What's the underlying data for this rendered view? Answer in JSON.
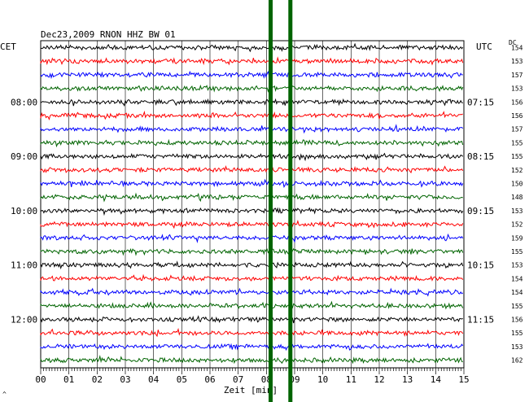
{
  "chart_data": {
    "type": "line",
    "title": "Dec23,2009   RNON HHZ BW 01",
    "left_header": "CET",
    "right_header": "UTC",
    "dc_header": "DC",
    "xlabel": "Zeit [min]",
    "xlim": [
      0,
      15
    ],
    "x_ticks": [
      "00",
      "01",
      "02",
      "03",
      "04",
      "05",
      "06",
      "07",
      "08",
      "09",
      "10",
      "11",
      "12",
      "13",
      "14",
      "15"
    ],
    "trace_count": 24,
    "trace_colors": [
      "#000000",
      "#ff0000",
      "#0000ff",
      "#006400"
    ],
    "left_time_labels": [
      {
        "trace": 4,
        "label": "08:00"
      },
      {
        "trace": 8,
        "label": "09:00"
      },
      {
        "trace": 12,
        "label": "10:00"
      },
      {
        "trace": 16,
        "label": "11:00"
      },
      {
        "trace": 20,
        "label": "12:00"
      }
    ],
    "right_time_labels": [
      {
        "trace": 4,
        "label": "07:15"
      },
      {
        "trace": 8,
        "label": "08:15"
      },
      {
        "trace": 12,
        "label": "09:15"
      },
      {
        "trace": 16,
        "label": "10:15"
      },
      {
        "trace": 20,
        "label": "11:15"
      }
    ],
    "dc_values": [
      "154",
      "153",
      "157",
      "153",
      "156",
      "156",
      "157",
      "155",
      "155",
      "152",
      "150",
      "148",
      "153",
      "152",
      "159",
      "155",
      "153",
      "154",
      "154",
      "155",
      "156",
      "155",
      "153",
      "162"
    ],
    "event_markers": [
      {
        "x": 8.15,
        "color": "#006400"
      },
      {
        "x": 8.85,
        "color": "#006400"
      }
    ],
    "corner_mark": "^"
  }
}
